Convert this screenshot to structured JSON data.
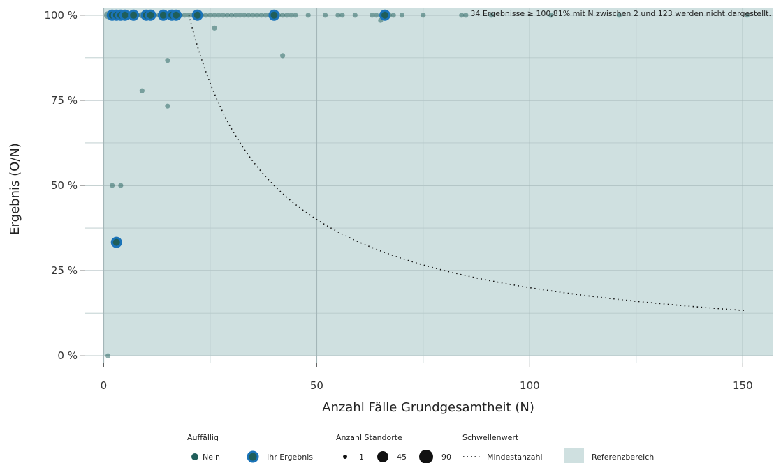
{
  "chart_data": {
    "type": "scatter",
    "xlabel": "Anzahl Fälle Grundgesamtheit (N)",
    "ylabel": "Ergebnis (O/N)",
    "xlim": [
      -4.5,
      157
    ],
    "ylim": [
      -2,
      102
    ],
    "x_ticks": [
      0,
      50,
      100,
      150
    ],
    "x_tick_labels": [
      "0",
      "50",
      "100",
      "150"
    ],
    "y_ticks": [
      0,
      25,
      50,
      75,
      100
    ],
    "y_tick_labels": [
      "0 %",
      "25 %",
      "50 %",
      "75 %",
      "100 %"
    ],
    "grid": true,
    "note": "34 Ergebnisse ≥ 100,81% mit N zwischen 2 und 123 werden nicht dargestellt.",
    "reference_area": {
      "x": [
        0,
        157
      ],
      "y": [
        0,
        102
      ],
      "color": "#cfe0e0"
    },
    "threshold_curve": {
      "name": "Mindestanzahl",
      "formula": "y = 2000 / x",
      "x_from": 20,
      "x_to": 151
    },
    "series": [
      {
        "name": "Nein",
        "color": "#1f5e5a",
        "points": [
          [
            1,
            100,
            3
          ],
          [
            2,
            100,
            2
          ],
          [
            3,
            100,
            2
          ],
          [
            4,
            100,
            2
          ],
          [
            5,
            100,
            2
          ],
          [
            6,
            100,
            1
          ],
          [
            7,
            100,
            2
          ],
          [
            8,
            100,
            1
          ],
          [
            9,
            100,
            2
          ],
          [
            10,
            100,
            1
          ],
          [
            11,
            100,
            2
          ],
          [
            12,
            100,
            1
          ],
          [
            13,
            100,
            1
          ],
          [
            14,
            100,
            2
          ],
          [
            15,
            100,
            1
          ],
          [
            16,
            100,
            1
          ],
          [
            17,
            100,
            1
          ],
          [
            18,
            100,
            1
          ],
          [
            19,
            100,
            1
          ],
          [
            20,
            100,
            1
          ],
          [
            21,
            100,
            1
          ],
          [
            22,
            100,
            1
          ],
          [
            23,
            100,
            1
          ],
          [
            24,
            100,
            1
          ],
          [
            25,
            100,
            1
          ],
          [
            26,
            100,
            1
          ],
          [
            27,
            100,
            1
          ],
          [
            28,
            100,
            1
          ],
          [
            29,
            100,
            1
          ],
          [
            30,
            100,
            1
          ],
          [
            31,
            100,
            1
          ],
          [
            32,
            100,
            1
          ],
          [
            33,
            100,
            1
          ],
          [
            34,
            100,
            1
          ],
          [
            35,
            100,
            1
          ],
          [
            36,
            100,
            1
          ],
          [
            37,
            100,
            1
          ],
          [
            38,
            100,
            1
          ],
          [
            39,
            100,
            1
          ],
          [
            41,
            100,
            1
          ],
          [
            42,
            100,
            1
          ],
          [
            43,
            100,
            1
          ],
          [
            44,
            100,
            1
          ],
          [
            45,
            100,
            1
          ],
          [
            48,
            100,
            1
          ],
          [
            52,
            100,
            1
          ],
          [
            55,
            100,
            1
          ],
          [
            56,
            100,
            1
          ],
          [
            59,
            100,
            1
          ],
          [
            63,
            100,
            1
          ],
          [
            64,
            100,
            1
          ],
          [
            67,
            100,
            1
          ],
          [
            68,
            100,
            1
          ],
          [
            70,
            100,
            1
          ],
          [
            75,
            100,
            1
          ],
          [
            84,
            100,
            1
          ],
          [
            85,
            100,
            1
          ],
          [
            91,
            100,
            1
          ],
          [
            105,
            100,
            1
          ],
          [
            121,
            100,
            1
          ],
          [
            151,
            100,
            1
          ],
          [
            26,
            96.2,
            1
          ],
          [
            65,
            98.5,
            1
          ],
          [
            15,
            86.7,
            1
          ],
          [
            42,
            88.1,
            1
          ],
          [
            9,
            77.8,
            1
          ],
          [
            15,
            73.3,
            1
          ],
          [
            2,
            50,
            1
          ],
          [
            4,
            50,
            1
          ],
          [
            1,
            0,
            1
          ]
        ]
      },
      {
        "name": "Ihr Ergebnis",
        "color": "#1f5e5a",
        "border": "#1a73b8",
        "points": [
          [
            2,
            100
          ],
          [
            3,
            100
          ],
          [
            4,
            100
          ],
          [
            5,
            100
          ],
          [
            7,
            100
          ],
          [
            10,
            100
          ],
          [
            11,
            100
          ],
          [
            14,
            100
          ],
          [
            16,
            100
          ],
          [
            17,
            100
          ],
          [
            22,
            100
          ],
          [
            40,
            100
          ],
          [
            66,
            100
          ],
          [
            3,
            33.3
          ]
        ]
      }
    ],
    "legend": {
      "placement": "bottom",
      "group1_title": "Auffällig",
      "group1_items": [
        "Nein",
        "Ihr Ergebnis"
      ],
      "group2_title": "Anzahl Standorte",
      "group2_items": [
        "1",
        "45",
        "90"
      ],
      "group3_title": "Schwellenwert",
      "group3_items": [
        "Mindestanzahl"
      ],
      "group4_items": [
        "Referenzbereich"
      ]
    }
  }
}
